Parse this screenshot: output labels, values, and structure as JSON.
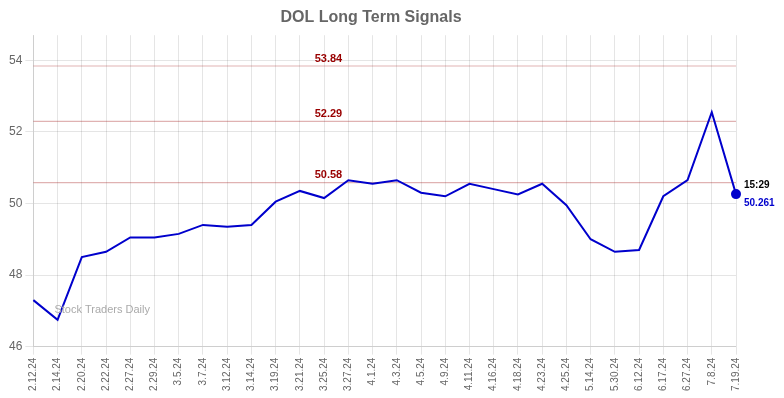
{
  "chart_data": {
    "type": "line",
    "title": "DOL Long Term Signals",
    "categories": [
      "2.12.24",
      "2.14.24",
      "2.20.24",
      "2.22.24",
      "2.27.24",
      "2.29.24",
      "3.5.24",
      "3.7.24",
      "3.12.24",
      "3.14.24",
      "3.19.24",
      "3.21.24",
      "3.25.24",
      "3.27.24",
      "4.1.24",
      "4.3.24",
      "4.5.24",
      "4.9.24",
      "4.11.24",
      "4.16.24",
      "4.18.24",
      "4.23.24",
      "4.25.24",
      "5.14.24",
      "5.30.24",
      "6.12.24",
      "6.17.24",
      "6.27.24",
      "7.8.24",
      "7.19.24"
    ],
    "values": [
      47.3,
      46.75,
      48.5,
      48.65,
      49.05,
      49.05,
      49.15,
      49.4,
      49.35,
      49.4,
      50.05,
      50.35,
      50.15,
      50.65,
      50.55,
      50.65,
      50.3,
      50.2,
      50.55,
      50.4,
      50.25,
      50.55,
      49.95,
      49.0,
      48.65,
      48.7,
      50.2,
      50.65,
      52.55,
      50.261
    ],
    "color": "#0000cc",
    "ylim": [
      46,
      54.7
    ],
    "yticks": [
      46,
      48,
      50,
      52,
      54
    ],
    "grid": true,
    "annotations": [
      {
        "type": "hline",
        "y": 53.84,
        "text": "53.84",
        "color": "#990000"
      },
      {
        "type": "hline",
        "y": 52.29,
        "text": "52.29",
        "color": "#990000"
      },
      {
        "type": "hline",
        "y": 50.58,
        "text": "50.58",
        "color": "#990000"
      },
      {
        "type": "point_label",
        "x": "7.19.24",
        "y": 50.261,
        "text": "15:29",
        "color": "#000000"
      },
      {
        "type": "point_label",
        "x": "7.19.24",
        "y": 50.261,
        "text": "50.261",
        "color": "#0000cc"
      },
      {
        "type": "watermark",
        "text": "Stock Traders Daily",
        "color": "#aaaaaa"
      }
    ]
  }
}
